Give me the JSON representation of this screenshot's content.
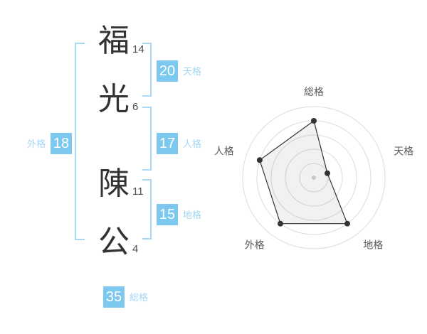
{
  "name_panel": {
    "characters": [
      {
        "char": "福",
        "strokes": "14"
      },
      {
        "char": "光",
        "strokes": "6"
      },
      {
        "char": "陳",
        "strokes": "11"
      },
      {
        "char": "公",
        "strokes": "4"
      }
    ],
    "scores": {
      "tenkaku": {
        "value": "20",
        "label": "天格"
      },
      "jinkaku": {
        "value": "17",
        "label": "人格"
      },
      "chikaku": {
        "value": "15",
        "label": "地格"
      },
      "gaikaku": {
        "value": "18",
        "label": "外格"
      },
      "soukaku": {
        "value": "35",
        "label": "総格"
      }
    }
  },
  "chart_data": {
    "type": "radar",
    "categories": [
      "総格",
      "天格",
      "地格",
      "外格",
      "人格"
    ],
    "values": [
      4,
      1,
      4,
      4,
      4
    ],
    "max": 5,
    "rings": 5,
    "grid": "concentric-circles",
    "legend": "none",
    "title": "",
    "start_axis": "top",
    "direction": "clockwise"
  },
  "colors": {
    "accent_blue": "#7cc8ef",
    "bracket_blue": "#a9daf5",
    "label_blue": "#a3d5f2",
    "badge_text": "#ffffff",
    "kanji_text": "#333333",
    "stroke_count_text": "#4f4f4f",
    "chart_ring": "#dcdcdc",
    "chart_line": "#333333",
    "chart_fill": "rgba(0,0,0,0.055)",
    "chart_label": "#585858",
    "chart_center_dot": "#c6c6c6"
  }
}
